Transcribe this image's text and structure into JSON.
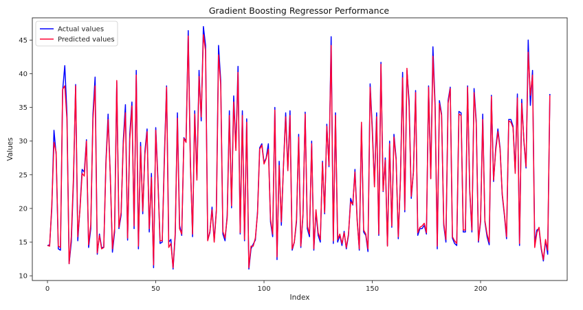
{
  "chart_data": {
    "type": "line",
    "title": "Gradient Boosting Regressor Performance",
    "xlabel": "Index",
    "ylabel": "Values",
    "xlim": [
      -7,
      240
    ],
    "ylim": [
      9.3,
      48.3
    ],
    "xticks": [
      0,
      50,
      100,
      150,
      200
    ],
    "yticks": [
      10,
      15,
      20,
      25,
      30,
      35,
      40,
      45
    ],
    "grid": false,
    "legend_position": "top-left",
    "series": [
      {
        "name": "Actual values",
        "color": "#0000ff",
        "values": [
          14.5,
          14.6,
          20.0,
          31.6,
          28.0,
          14.0,
          13.8,
          37.5,
          41.2,
          34.0,
          11.8,
          15.0,
          24.0,
          38.4,
          15.2,
          20.0,
          25.8,
          25.4,
          30.2,
          14.2,
          17.0,
          34.0,
          39.5,
          13.2,
          16.2,
          14.2,
          14.2,
          27.0,
          34.0,
          25.0,
          13.5,
          16.5,
          38.8,
          17.0,
          19.0,
          30.0,
          35.4,
          15.3,
          31.0,
          35.8,
          17.0,
          40.5,
          14.0,
          29.8,
          19.2,
          28.5,
          31.8,
          16.5,
          25.2,
          11.2,
          32.0,
          24.5,
          14.8,
          15.0,
          28.0,
          38.2,
          15.0,
          15.4,
          11.0,
          16.0,
          34.2,
          17.5,
          16.0,
          30.5,
          30.0,
          46.4,
          27.0,
          15.8,
          34.5,
          24.5,
          40.5,
          33.0,
          47.0,
          44.2,
          15.3,
          16.4,
          20.2,
          15.2,
          19.8,
          44.2,
          39.0,
          16.2,
          15.2,
          19.0,
          34.5,
          20.1,
          36.7,
          29.0,
          41.1,
          16.2,
          34.5,
          15.2,
          33.3,
          11.0,
          14.0,
          14.7,
          15.3,
          19.5,
          29.0,
          29.6,
          26.8,
          27.5,
          29.6,
          18.0,
          15.8,
          35.0,
          12.4,
          27.0,
          17.5,
          26.5,
          34.2,
          25.8,
          34.5,
          13.8,
          15.0,
          18.0,
          31.0,
          14.2,
          19.0,
          34.3,
          17.0,
          15.8,
          30.0,
          13.8,
          19.5,
          16.0,
          15.0,
          27.0,
          19.2,
          32.5,
          26.2,
          45.5,
          14.8,
          34.2,
          15.0,
          16.0,
          14.5,
          16.6,
          14.0,
          16.0,
          21.5,
          20.5,
          25.8,
          18.5,
          13.8,
          32.5,
          16.5,
          16.0,
          13.6,
          38.5,
          32.0,
          23.5,
          34.2,
          16.0,
          41.7,
          22.5,
          27.5,
          14.5,
          30.0,
          17.2,
          31.0,
          27.5,
          15.5,
          24.5,
          40.2,
          19.5,
          40.5,
          36.0,
          21.5,
          25.5,
          37.5,
          16.0,
          17.0,
          17.0,
          17.5,
          16.2,
          38.2,
          24.5,
          44.0,
          35.5,
          14.0,
          36.0,
          34.0,
          17.5,
          15.0,
          36.0,
          38.0,
          15.6,
          14.8,
          14.5,
          34.4,
          34.2,
          16.5,
          16.5,
          38.2,
          22.5,
          16.5,
          37.8,
          33.0,
          15.0,
          18.0,
          34.0,
          18.0,
          15.8,
          14.6,
          36.8,
          24.0,
          29.0,
          31.8,
          29.0,
          22.0,
          19.0,
          15.5,
          33.2,
          33.2,
          32.2,
          25.5,
          37.0,
          14.5,
          36.2,
          30.0,
          26.0,
          45.0,
          35.3,
          40.5,
          14.8,
          16.8,
          17.0,
          14.0,
          12.2,
          15.2,
          13.2,
          37.0
        ]
      },
      {
        "name": "Predicted values",
        "color": "#ff0033",
        "values": [
          14.5,
          14.4,
          20.5,
          29.8,
          28.4,
          14.4,
          14.2,
          37.7,
          38.2,
          33.2,
          11.8,
          15.8,
          24.6,
          38.2,
          15.8,
          19.8,
          25.2,
          24.8,
          30.0,
          14.6,
          17.6,
          33.2,
          38.2,
          13.4,
          16.0,
          14.0,
          14.2,
          26.6,
          33.2,
          25.0,
          14.0,
          17.0,
          39.0,
          17.2,
          19.4,
          29.4,
          34.2,
          15.6,
          30.2,
          35.2,
          17.4,
          39.8,
          14.4,
          29.2,
          19.6,
          28.0,
          31.4,
          17.0,
          24.6,
          11.6,
          31.6,
          24.0,
          15.2,
          15.2,
          27.2,
          38.0,
          14.2,
          14.8,
          11.2,
          16.4,
          33.4,
          17.0,
          16.2,
          30.4,
          29.8,
          45.6,
          26.6,
          16.2,
          34.0,
          24.2,
          39.6,
          33.6,
          45.8,
          43.4,
          15.2,
          16.6,
          19.8,
          15.0,
          19.6,
          42.8,
          38.4,
          16.6,
          15.6,
          18.6,
          33.8,
          20.4,
          35.8,
          28.6,
          40.2,
          16.4,
          33.8,
          15.4,
          32.8,
          11.2,
          14.4,
          14.4,
          15.6,
          19.2,
          28.8,
          29.4,
          26.6,
          27.4,
          28.8,
          18.4,
          16.2,
          34.6,
          12.8,
          26.4,
          18.0,
          26.4,
          33.6,
          25.6,
          33.8,
          14.0,
          15.0,
          18.4,
          30.6,
          14.4,
          19.2,
          34.0,
          17.4,
          16.2,
          29.6,
          14.0,
          19.8,
          16.4,
          15.4,
          26.8,
          19.4,
          32.2,
          26.4,
          44.2,
          15.2,
          33.8,
          15.4,
          16.2,
          14.8,
          16.4,
          14.2,
          16.2,
          21.0,
          20.6,
          25.4,
          18.2,
          14.0,
          32.8,
          16.8,
          16.2,
          14.0,
          38.0,
          31.4,
          23.2,
          33.6,
          16.2,
          41.4,
          22.6,
          27.2,
          14.4,
          29.6,
          17.4,
          30.6,
          27.2,
          15.8,
          24.2,
          39.4,
          19.8,
          40.8,
          35.2,
          21.8,
          25.4,
          37.2,
          16.4,
          17.2,
          17.4,
          17.8,
          16.4,
          38.0,
          24.4,
          42.6,
          35.0,
          14.4,
          35.6,
          33.8,
          17.8,
          15.4,
          35.6,
          37.8,
          15.8,
          15.2,
          14.8,
          34.0,
          33.8,
          16.8,
          16.8,
          38.0,
          22.8,
          16.8,
          37.2,
          32.6,
          15.2,
          18.2,
          33.2,
          18.2,
          16.2,
          15.0,
          36.6,
          24.2,
          28.6,
          31.4,
          28.8,
          22.2,
          19.2,
          15.8,
          33.0,
          32.8,
          32.0,
          25.2,
          36.4,
          14.8,
          35.6,
          30.2,
          26.2,
          43.2,
          36.8,
          39.8,
          14.2,
          16.4,
          17.2,
          14.2,
          12.4,
          15.4,
          13.8,
          36.8
        ]
      }
    ]
  }
}
